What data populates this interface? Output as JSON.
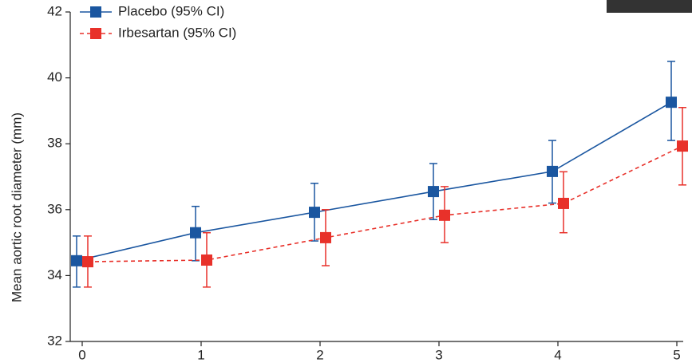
{
  "chart_data": {
    "type": "line",
    "y_label": "Mean aortic root diameter (mm)",
    "x": [
      0,
      1,
      2,
      3,
      4,
      5
    ],
    "xlim": [
      0,
      5
    ],
    "xticks": [
      0,
      1,
      2,
      3,
      4,
      5
    ],
    "ylim": [
      32,
      42
    ],
    "yticks": [
      32,
      34,
      36,
      38,
      40,
      42
    ],
    "series": [
      {
        "name": "Placebo (95% CI)",
        "color": "#1a56a0",
        "dashed": false,
        "values": [
          34.45,
          35.3,
          35.92,
          36.55,
          37.16,
          39.26
        ],
        "lower": [
          33.65,
          34.45,
          35.05,
          35.7,
          36.2,
          38.1
        ],
        "upper": [
          35.2,
          36.1,
          36.8,
          37.4,
          38.1,
          40.5
        ]
      },
      {
        "name": "Irbesartan (95% CI)",
        "color": "#e8312a",
        "dashed": true,
        "values": [
          34.42,
          34.47,
          35.15,
          35.83,
          36.19,
          37.93
        ],
        "lower": [
          33.65,
          33.65,
          34.3,
          35.0,
          35.3,
          36.75
        ],
        "upper": [
          35.2,
          35.3,
          36.0,
          36.7,
          37.15,
          39.1
        ]
      }
    ]
  }
}
